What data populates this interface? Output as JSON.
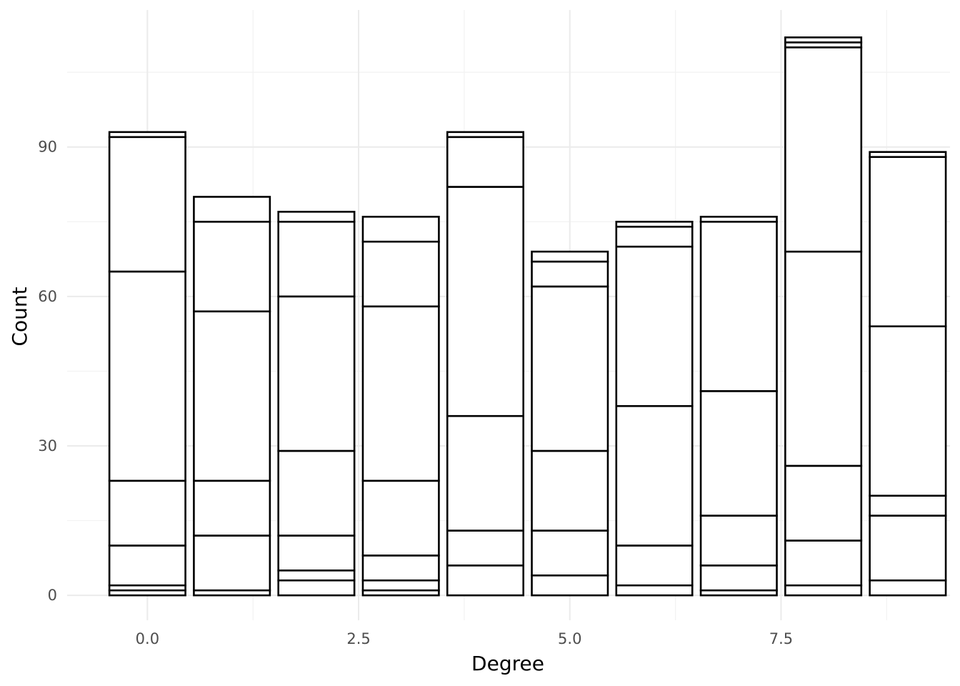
{
  "chart_data": {
    "type": "bar",
    "stacked": true,
    "xlabel": "Degree",
    "ylabel": "Count",
    "x_ticks": [
      "0.0",
      "2.5",
      "5.0",
      "7.5"
    ],
    "x_tick_values": [
      0,
      2.5,
      5,
      7.5
    ],
    "y_ticks": [
      "0",
      "30",
      "60",
      "90"
    ],
    "y_tick_values": [
      0,
      30,
      60,
      90
    ],
    "xlim": [
      -0.95,
      9.5
    ],
    "ylim": [
      -5,
      117.5
    ],
    "bar_width": 0.9,
    "grid": true,
    "fill_color": "#ffffff",
    "outline_color": "#000000",
    "bars": [
      {
        "x": 0,
        "boundaries": [
          0,
          1,
          2,
          10,
          23,
          65,
          92,
          93
        ]
      },
      {
        "x": 1,
        "boundaries": [
          0,
          1,
          12,
          23,
          57,
          75,
          80
        ]
      },
      {
        "x": 2,
        "boundaries": [
          0,
          3,
          5,
          12,
          29,
          60,
          75,
          77
        ]
      },
      {
        "x": 3,
        "boundaries": [
          0,
          1,
          3,
          8,
          23,
          58,
          71,
          76
        ]
      },
      {
        "x": 4,
        "boundaries": [
          0,
          6,
          13,
          36,
          82,
          92,
          93
        ]
      },
      {
        "x": 5,
        "boundaries": [
          0,
          4,
          13,
          29,
          62,
          67,
          69
        ]
      },
      {
        "x": 6,
        "boundaries": [
          0,
          2,
          10,
          38,
          70,
          74,
          75
        ]
      },
      {
        "x": 7,
        "boundaries": [
          0,
          1,
          6,
          16,
          41,
          75,
          76
        ]
      },
      {
        "x": 8,
        "boundaries": [
          0,
          2,
          11,
          26,
          69,
          110,
          111,
          112
        ]
      },
      {
        "x": 9,
        "boundaries": [
          0,
          3,
          16,
          20,
          54,
          88,
          89
        ]
      }
    ]
  }
}
